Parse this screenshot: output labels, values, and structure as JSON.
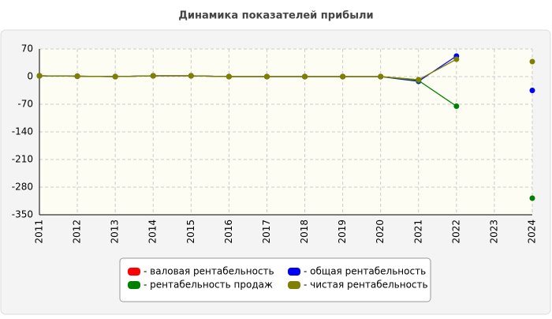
{
  "chart_data": {
    "type": "line",
    "title": "Динамика показателей прибыли",
    "categories": [
      "2011",
      "2012",
      "2013",
      "2014",
      "2015",
      "2016",
      "2017",
      "2018",
      "2019",
      "2020",
      "2021",
      "2022",
      "2023",
      "2024"
    ],
    "series": [
      {
        "name": "- валовая рентабельность",
        "color": "#ff0000",
        "values": [
          2,
          1,
          0,
          2,
          2,
          0,
          0,
          0,
          0,
          0,
          -8,
          null,
          null,
          null
        ]
      },
      {
        "name": "- общая рентабельность",
        "color": "#0000ff",
        "values": [
          2,
          1,
          0,
          2,
          2,
          0,
          0,
          0,
          0,
          0,
          -12,
          52,
          null,
          -35
        ]
      },
      {
        "name": "- рентабельность продаж",
        "color": "#008000",
        "values": [
          2,
          1,
          0,
          2,
          2,
          0,
          0,
          0,
          0,
          0,
          -10,
          -75,
          null,
          -308
        ]
      },
      {
        "name": "- чистая рентабельность",
        "color": "#808000",
        "values": [
          2,
          1,
          0,
          2,
          2,
          0,
          0,
          0,
          0,
          0,
          -8,
          44,
          null,
          38
        ]
      }
    ],
    "ylim": [
      -350,
      70
    ],
    "yticks": [
      70,
      0,
      -70,
      -140,
      -210,
      -280,
      -350
    ],
    "grid": true
  }
}
